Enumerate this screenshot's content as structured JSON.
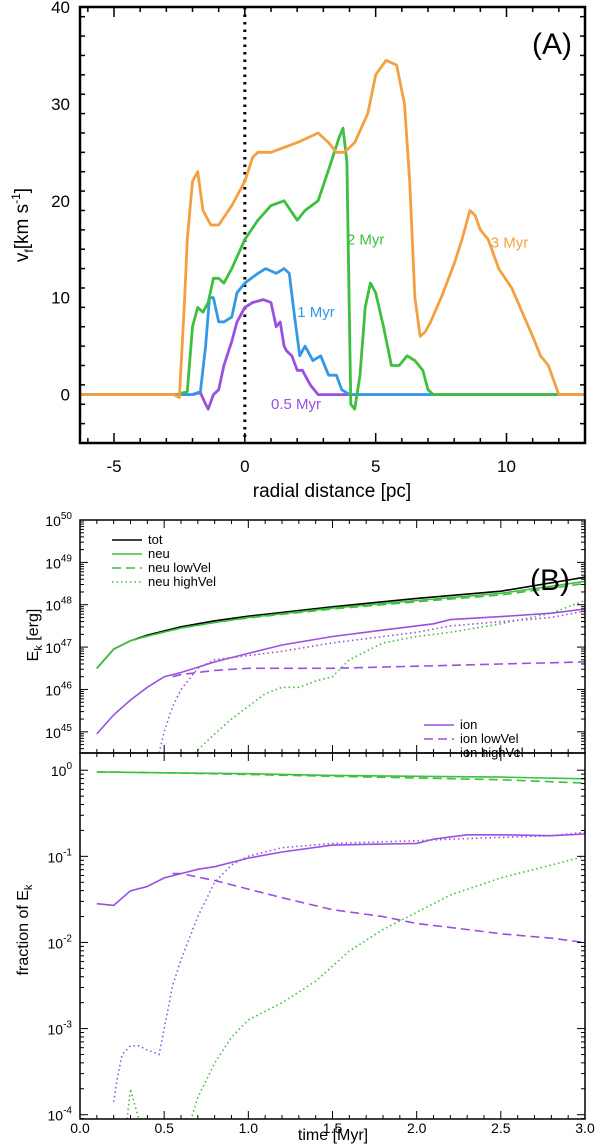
{
  "colors": {
    "purple": "#9b4fe0",
    "blue": "#3498e6",
    "green": "#3fbf3f",
    "orange": "#f5a040",
    "black": "#000000"
  },
  "chart_data": [
    {
      "type": "line",
      "panel_label": "(A)",
      "xlabel": "radial distance [pc]",
      "ylabel_main": "v",
      "ylabel_sub": "f",
      "ylabel_unit": "[km s",
      "ylabel_exp": "-1",
      "ylabel_close": "]",
      "xlim": [
        -6.3,
        13
      ],
      "ylim": [
        -5,
        40
      ],
      "xticks": [
        -5,
        0,
        5,
        10
      ],
      "xtick_labels": [
        "-5",
        "0",
        "5",
        "10"
      ],
      "yticks": [
        0,
        10,
        20,
        30,
        40
      ],
      "ytick_labels": [
        "0",
        "10",
        "20",
        "30",
        "40"
      ],
      "vline_x": 0,
      "series": [
        {
          "name": "0.5 Myr",
          "color": "purple",
          "label_at": [
            1.0,
            -1.5
          ],
          "x": [
            -6.3,
            -2,
            -1.7,
            -1.5,
            -1.4,
            -1.2,
            -1.0,
            -0.8,
            -0.5,
            -0.3,
            0,
            0.3,
            0.7,
            1.0,
            1.2,
            1.35,
            1.5,
            1.6,
            1.8,
            2.0,
            2.2,
            2.5,
            2.8,
            3.0,
            13
          ],
          "y": [
            0,
            0,
            0.2,
            -1,
            -1.5,
            0,
            0.5,
            3,
            5.5,
            7.5,
            9,
            9.5,
            9.8,
            9.5,
            7,
            7.5,
            5,
            4.5,
            4,
            2.5,
            2.5,
            1,
            0,
            0,
            0
          ]
        },
        {
          "name": "1 Myr",
          "color": "blue",
          "label_at": [
            2.0,
            8.0
          ],
          "x": [
            -6.3,
            -2.3,
            -2.0,
            -1.7,
            -1.5,
            -1.35,
            -1.2,
            -1.0,
            -0.8,
            -0.5,
            -0.3,
            0,
            0.5,
            0.8,
            1.2,
            1.5,
            1.7,
            1.9,
            2.1,
            2.3,
            2.6,
            2.9,
            3.2,
            3.5,
            3.7,
            4.0,
            13
          ],
          "y": [
            0,
            0,
            0,
            0.3,
            5,
            10,
            10,
            7.5,
            7.5,
            8,
            10.5,
            11.5,
            12.5,
            13,
            12.5,
            13,
            12.5,
            8,
            4,
            5,
            3.5,
            4,
            2,
            2,
            0.5,
            0,
            0
          ]
        },
        {
          "name": "2 Myr",
          "color": "green",
          "label_at": [
            3.9,
            15.5
          ],
          "x": [
            -6.3,
            -2.6,
            -2.2,
            -2.0,
            -1.8,
            -1.6,
            -1.4,
            -1.2,
            -1.0,
            -0.8,
            -0.5,
            0,
            0.5,
            1.0,
            1.5,
            2.0,
            2.3,
            2.8,
            3.3,
            3.6,
            3.75,
            3.9,
            4.05,
            4.2,
            4.4,
            4.6,
            4.8,
            5.0,
            5.3,
            5.6,
            5.9,
            6.2,
            6.5,
            6.8,
            7.0,
            7.2,
            13
          ],
          "y": [
            0,
            0,
            0.3,
            7,
            9,
            8.5,
            9.5,
            12,
            12,
            11.5,
            13,
            16,
            18,
            19.5,
            20,
            18,
            19,
            20,
            24,
            26.5,
            27.5,
            24,
            -1,
            -1.5,
            2,
            9,
            11.5,
            10.5,
            7,
            3,
            3,
            4,
            3.5,
            2.5,
            0.5,
            0,
            0
          ]
        },
        {
          "name": "3 Myr",
          "color": "orange",
          "label_at": [
            9.4,
            15.2
          ],
          "x": [
            -6.3,
            -2.7,
            -2.5,
            -2.3,
            -2.2,
            -2.0,
            -1.8,
            -1.6,
            -1.3,
            -1.0,
            -0.5,
            0,
            0.3,
            0.5,
            1.0,
            2.0,
            2.8,
            3.2,
            3.5,
            3.8,
            4.2,
            4.7,
            5.0,
            5.4,
            5.8,
            6.1,
            6.3,
            6.5,
            6.7,
            6.9,
            7.1,
            7.5,
            8.0,
            8.3,
            8.6,
            8.8,
            9.0,
            9.3,
            9.7,
            10.2,
            10.6,
            11.0,
            11.3,
            11.6,
            11.8,
            12.0,
            12.2,
            13
          ],
          "y": [
            0,
            0,
            -0.3,
            10,
            16,
            22,
            23,
            19,
            17.5,
            17.5,
            19.5,
            22,
            24.5,
            25,
            25,
            26,
            27,
            26,
            25,
            25,
            26,
            29,
            33,
            34.5,
            34,
            30,
            22,
            10,
            6,
            6.5,
            7.5,
            10,
            13.5,
            16,
            19,
            18.5,
            17,
            16,
            13,
            11,
            8.5,
            6,
            4,
            3,
            1.5,
            0,
            0,
            0
          ]
        }
      ]
    },
    {
      "type": "line",
      "panel_label": "(B)",
      "yscale": "log",
      "ylabel_main": "E",
      "ylabel_sub": "k",
      "ylabel_unit": " [erg]",
      "xlim": [
        0,
        3
      ],
      "ylim_exp": [
        44.5,
        50
      ],
      "ytick_exps": [
        45,
        46,
        47,
        48,
        49,
        50
      ],
      "ytick_base": "10",
      "ytick_exp_labels": [
        "45",
        "46",
        "47",
        "48",
        "49",
        "50"
      ],
      "legend_top": [
        {
          "name": "tot",
          "color": "black",
          "style": "solid"
        },
        {
          "name": "neu",
          "color": "green",
          "style": "solid"
        },
        {
          "name": "neu lowVel",
          "color": "green",
          "style": "dashed"
        },
        {
          "name": "neu highVel",
          "color": "green",
          "style": "dotted"
        }
      ],
      "legend_bottom": [
        {
          "name": "ion",
          "color": "purple",
          "style": "solid"
        },
        {
          "name": "ion lowVel",
          "color": "purple",
          "style": "dashed"
        },
        {
          "name": "ion highVel",
          "color": "purple",
          "style": "dotted"
        }
      ],
      "series": [
        {
          "name": "tot",
          "color": "black",
          "style": "solid",
          "x": [
            0.1,
            0.2,
            0.3,
            0.4,
            0.6,
            0.8,
            1.0,
            1.5,
            2.0,
            2.5,
            3.0
          ],
          "log_y": [
            46.5,
            46.95,
            47.15,
            47.28,
            47.48,
            47.62,
            47.73,
            47.95,
            48.15,
            48.32,
            48.65
          ]
        },
        {
          "name": "neu",
          "color": "green",
          "style": "solid",
          "x": [
            0.1,
            0.2,
            0.3,
            0.4,
            0.6,
            0.8,
            1.0,
            1.5,
            2.0,
            2.5,
            3.0
          ],
          "log_y": [
            46.5,
            46.95,
            47.15,
            47.26,
            47.45,
            47.58,
            47.7,
            47.92,
            48.1,
            48.27,
            48.55
          ]
        },
        {
          "name": "neu lowVel",
          "color": "green",
          "style": "dashed",
          "x": [
            0.1,
            0.2,
            0.3,
            0.4,
            0.6,
            0.8,
            1.0,
            1.5,
            2.0,
            2.5,
            3.0
          ],
          "log_y": [
            46.5,
            46.95,
            47.15,
            47.26,
            47.45,
            47.58,
            47.69,
            47.9,
            48.07,
            48.23,
            48.5
          ]
        },
        {
          "name": "neu highVel",
          "color": "green",
          "style": "dotted",
          "x": [
            0.68,
            0.8,
            0.9,
            1.0,
            1.1,
            1.2,
            1.3,
            1.4,
            1.5,
            1.6,
            1.8,
            2.0,
            2.2,
            2.5,
            2.8,
            3.0
          ],
          "log_y": [
            44.5,
            44.95,
            45.3,
            45.6,
            45.9,
            46.05,
            46.05,
            46.2,
            46.3,
            46.7,
            47.1,
            47.25,
            47.35,
            47.55,
            47.8,
            48.1
          ]
        },
        {
          "name": "ion",
          "color": "purple",
          "style": "solid",
          "x": [
            0.1,
            0.2,
            0.3,
            0.4,
            0.5,
            0.6,
            0.8,
            1.0,
            1.2,
            1.5,
            1.8,
            2.1,
            2.2,
            2.5,
            2.8,
            3.0
          ],
          "log_y": [
            44.95,
            45.4,
            45.75,
            46.05,
            46.3,
            46.4,
            46.65,
            46.85,
            47.05,
            47.25,
            47.4,
            47.55,
            47.65,
            47.72,
            47.8,
            47.9
          ]
        },
        {
          "name": "ion lowVel",
          "color": "purple",
          "style": "dashed",
          "x": [
            0.55,
            0.6,
            0.8,
            1.0,
            1.5,
            2.0,
            2.5,
            3.0
          ],
          "log_y": [
            46.3,
            46.35,
            46.45,
            46.5,
            46.5,
            46.55,
            46.6,
            46.65
          ]
        },
        {
          "name": "ion highVel",
          "color": "purple",
          "style": "dotted",
          "x": [
            0.47,
            0.5,
            0.55,
            0.6,
            0.7,
            0.8,
            0.9,
            1.0,
            1.2,
            1.5,
            2.0,
            2.2,
            2.5,
            2.8,
            3.0
          ],
          "log_y": [
            44.5,
            45.0,
            45.6,
            46.0,
            46.5,
            46.7,
            46.75,
            46.8,
            46.9,
            47.1,
            47.35,
            47.5,
            47.6,
            47.7,
            47.85
          ]
        }
      ]
    },
    {
      "type": "line",
      "yscale": "log",
      "xlabel": "time [Myr]",
      "ylabel_main": "fraction of E",
      "ylabel_sub": "k",
      "xlim": [
        0,
        3
      ],
      "xticks": [
        0,
        0.5,
        1,
        1.5,
        2,
        2.5,
        3
      ],
      "xtick_labels": [
        "0.0",
        "0.5",
        "1.0",
        "1.5",
        "2.0",
        "2.5",
        "3.0"
      ],
      "ylim_exp": [
        -4.05,
        0.2
      ],
      "ytick_exps": [
        -4,
        -3,
        -2,
        -1,
        0
      ],
      "ytick_base": "10",
      "ytick_exp_labels": [
        "-4",
        "-3",
        "-2",
        "-1",
        "0"
      ],
      "series": [
        {
          "name": "neu",
          "color": "green",
          "style": "solid",
          "x": [
            0.1,
            0.5,
            1.0,
            1.5,
            2.0,
            2.5,
            3.0
          ],
          "log_y": [
            -0.02,
            -0.03,
            -0.04,
            -0.06,
            -0.07,
            -0.08,
            -0.1
          ]
        },
        {
          "name": "neu lowVel",
          "color": "green",
          "style": "dashed",
          "x": [
            0.1,
            0.5,
            1.0,
            1.5,
            2.0,
            2.5,
            3.0
          ],
          "log_y": [
            -0.02,
            -0.03,
            -0.05,
            -0.07,
            -0.09,
            -0.11,
            -0.15
          ]
        },
        {
          "name": "neu highVel",
          "color": "green",
          "style": "dotted",
          "x": [
            0.28,
            0.3,
            0.32,
            0.35,
            0.66,
            0.7,
            0.8,
            0.9,
            1.0,
            1.2,
            1.4,
            1.6,
            1.8,
            2.0,
            2.2,
            2.5,
            2.8,
            3.0
          ],
          "log_y": [
            -4.05,
            -3.7,
            -3.85,
            -4.05,
            -4.05,
            -3.8,
            -3.4,
            -3.1,
            -2.9,
            -2.7,
            -2.45,
            -2.1,
            -1.85,
            -1.65,
            -1.45,
            -1.25,
            -1.1,
            -1.0
          ]
        },
        {
          "name": "ion",
          "color": "purple",
          "style": "solid",
          "x": [
            0.1,
            0.2,
            0.3,
            0.4,
            0.5,
            0.6,
            0.7,
            0.8,
            1.0,
            1.2,
            1.5,
            2.0,
            2.1,
            2.3,
            2.5,
            2.8,
            3.0
          ],
          "log_y": [
            -1.55,
            -1.57,
            -1.4,
            -1.35,
            -1.25,
            -1.2,
            -1.15,
            -1.12,
            -1.02,
            -0.95,
            -0.87,
            -0.85,
            -0.8,
            -0.75,
            -0.75,
            -0.76,
            -0.74
          ]
        },
        {
          "name": "ion lowVel",
          "color": "purple",
          "style": "dashed",
          "x": [
            0.55,
            0.6,
            0.8,
            1.0,
            1.2,
            1.5,
            1.8,
            2.0,
            2.3,
            2.5,
            2.8,
            3.0
          ],
          "log_y": [
            -1.2,
            -1.2,
            -1.28,
            -1.38,
            -1.48,
            -1.62,
            -1.7,
            -1.78,
            -1.85,
            -1.9,
            -1.95,
            -2.0
          ]
        },
        {
          "name": "ion highVel",
          "color": "purple",
          "style": "dotted",
          "x": [
            0.2,
            0.22,
            0.25,
            0.3,
            0.35,
            0.4,
            0.47,
            0.5,
            0.55,
            0.6,
            0.7,
            0.8,
            0.9,
            1.0,
            1.2,
            1.5,
            2.0,
            2.2,
            2.5,
            2.8,
            3.0
          ],
          "log_y": [
            -3.85,
            -3.6,
            -3.3,
            -3.2,
            -3.2,
            -3.25,
            -3.3,
            -3.0,
            -2.5,
            -2.2,
            -1.7,
            -1.3,
            -1.1,
            -1.0,
            -0.9,
            -0.85,
            -0.82,
            -0.8,
            -0.78,
            -0.76,
            -0.72
          ]
        }
      ]
    }
  ]
}
